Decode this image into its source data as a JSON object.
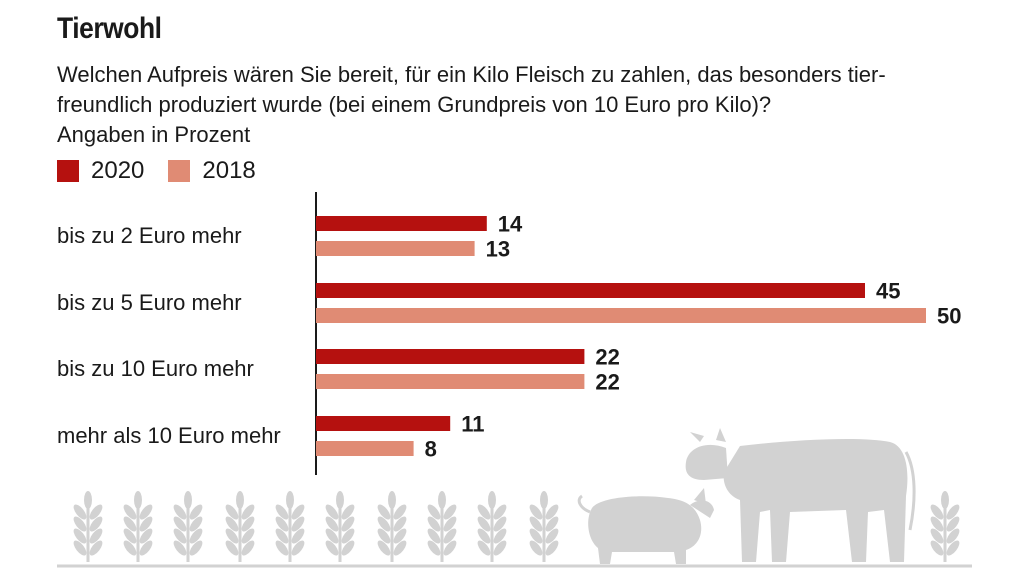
{
  "chart_data": {
    "type": "bar",
    "orientation": "horizontal",
    "title": "Tierwohl",
    "subtitle": "Welchen Aufpreis wären Sie bereit, für ein Kilo Fleisch zu zahlen, das besonders tier-freundlich produziert wurde (bei einem Grundpreis von 10 Euro pro Kilo)?",
    "unit_note": "Angaben in Prozent",
    "categories": [
      "bis zu 2 Euro mehr",
      "bis zu 5 Euro mehr",
      "bis zu 10 Euro mehr",
      "mehr als 10 Euro mehr"
    ],
    "series": [
      {
        "name": "2020",
        "values": [
          14,
          45,
          22,
          11
        ],
        "color": "#b5110f"
      },
      {
        "name": "2018",
        "values": [
          13,
          50,
          22,
          8
        ],
        "color": "#e08b74"
      }
    ],
    "xlim": [
      0,
      50
    ],
    "legend_position": "top-left",
    "grid": false
  },
  "decoration": {
    "icons": [
      "wheat-icon",
      "pig-icon",
      "cow-icon"
    ],
    "icon_color": "#d2d2d2"
  }
}
